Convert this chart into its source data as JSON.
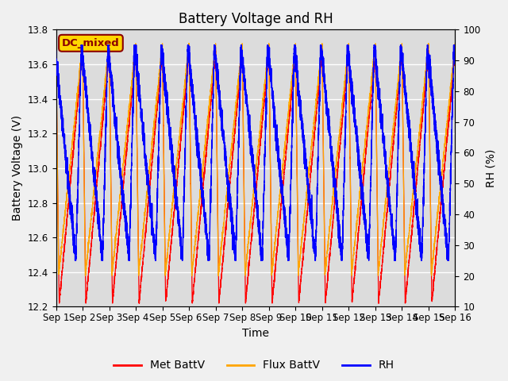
{
  "title": "Battery Voltage and RH",
  "xlabel": "Time",
  "ylabel_left": "Battery Voltage (V)",
  "ylabel_right": "RH (%)",
  "ylim_left": [
    12.2,
    13.8
  ],
  "ylim_right": [
    10,
    100
  ],
  "yticks_left": [
    12.2,
    12.4,
    12.6,
    12.8,
    13.0,
    13.2,
    13.4,
    13.6,
    13.8
  ],
  "yticks_right": [
    10,
    20,
    30,
    40,
    50,
    60,
    70,
    80,
    90,
    100
  ],
  "xtick_labels": [
    "Sep 1",
    "Sep 2",
    "Sep 3",
    "Sep 4",
    "Sep 5",
    "Sep 6",
    "Sep 7",
    "Sep 8",
    "Sep 9",
    "Sep 10",
    "Sep 11",
    "Sep 12",
    "Sep 13",
    "Sep 14",
    "Sep 15",
    "Sep 16"
  ],
  "annotation_text": "DC_mixed",
  "annotation_color": "#8B0000",
  "annotation_bg": "#FFD700",
  "color_met": "#FF0000",
  "color_flux": "#FFA500",
  "color_rh": "#0000FF",
  "legend_labels": [
    "Met BattV",
    "Flux BattV",
    "RH"
  ],
  "background_color": "#DCDCDC",
  "fig_bg": "#F0F0F0",
  "num_cycles": 15,
  "n_points": 6000,
  "batt_min_met": 12.22,
  "batt_min_flux": 12.38,
  "batt_max_met": 13.68,
  "batt_max_flux": 13.72,
  "rh_min": 25,
  "rh_max": 95,
  "title_fontsize": 12,
  "label_fontsize": 10,
  "tick_fontsize": 8.5,
  "legend_fontsize": 10,
  "lw_met": 0.9,
  "lw_flux": 0.9,
  "lw_rh": 1.0
}
